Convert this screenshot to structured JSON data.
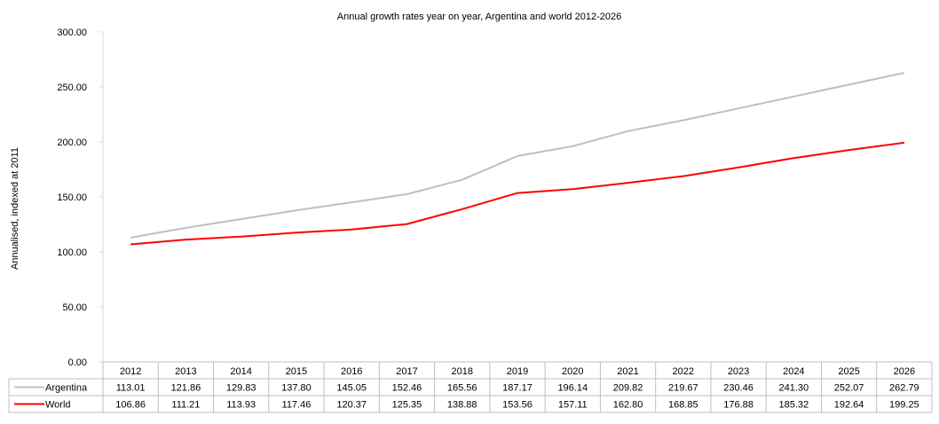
{
  "chart_data": {
    "type": "line",
    "title": "Annual growth rates year on year, Argentina and world 2012-2026",
    "xlabel": "",
    "ylabel": "Annualised, indexed at 2011",
    "ylim": [
      0,
      300
    ],
    "yticks": [
      "0.00",
      "50.00",
      "100.00",
      "150.00",
      "200.00",
      "250.00",
      "300.00"
    ],
    "grid": false,
    "legend": "data table below chart",
    "categories": [
      "2012",
      "2013",
      "2014",
      "2015",
      "2016",
      "2017",
      "2018",
      "2019",
      "2020",
      "2021",
      "2022",
      "2023",
      "2024",
      "2025",
      "2026"
    ],
    "series": [
      {
        "name": "Argentina",
        "color": "#bfbfbf",
        "values": [
          113.01,
          121.86,
          129.83,
          137.8,
          145.05,
          152.46,
          165.56,
          187.17,
          196.14,
          209.82,
          219.67,
          230.46,
          241.3,
          252.07,
          262.79
        ],
        "labels": [
          "113.01",
          "121.86",
          "129.83",
          "137.80",
          "145.05",
          "152.46",
          "165.56",
          "187.17",
          "196.14",
          "209.82",
          "219.67",
          "230.46",
          "241.30",
          "252.07",
          "262.79"
        ]
      },
      {
        "name": "World",
        "color": "#ff0000",
        "values": [
          106.86,
          111.21,
          113.93,
          117.46,
          120.37,
          125.35,
          138.88,
          153.56,
          157.11,
          162.8,
          168.85,
          176.88,
          185.32,
          192.64,
          199.25
        ],
        "labels": [
          "106.86",
          "111.21",
          "113.93",
          "117.46",
          "120.37",
          "125.35",
          "138.88",
          "153.56",
          "157.11",
          "162.80",
          "168.85",
          "176.88",
          "185.32",
          "192.64",
          "199.25"
        ]
      }
    ]
  }
}
